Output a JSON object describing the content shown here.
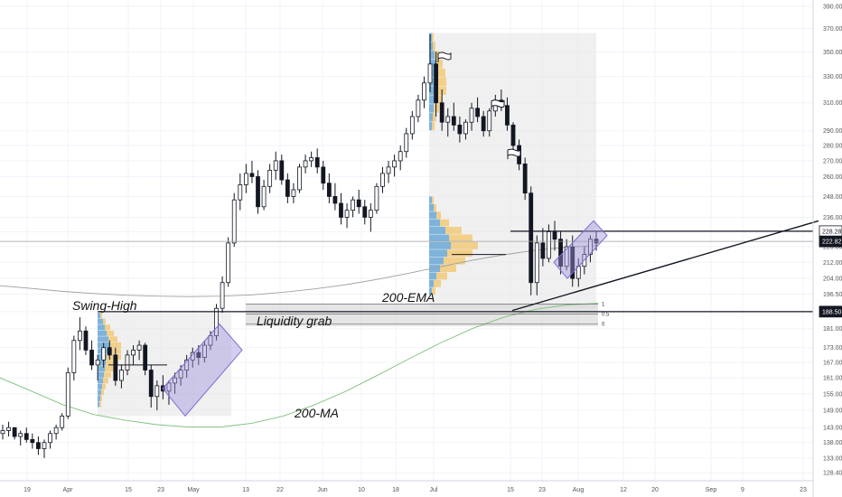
{
  "chart_data": {
    "type": "candlestick",
    "x_labels": [
      "19",
      "Apr",
      "15",
      "23",
      "May",
      "13",
      "22",
      "Jun",
      "10",
      "18",
      "Jul",
      "15",
      "23",
      "Aug",
      "12",
      "20",
      "Sep",
      "9",
      "23"
    ],
    "y_ticks": [
      128.4,
      133.0,
      138.0,
      143.0,
      149.0,
      155.0,
      161.0,
      167.0,
      173.0,
      181.0,
      188.5,
      196.5,
      204.0,
      212.0,
      220.0,
      228.0,
      236.0,
      248.0,
      260.0,
      270.0,
      280.0,
      290.0,
      310.0,
      330.0,
      350.0,
      370.0,
      390.0
    ],
    "y_tick_labels": [
      "128.40",
      "133.00",
      "138.00",
      "143.00",
      "149.00",
      "155.00",
      "161.00",
      "167.00",
      "173.00",
      "181.00",
      "188.50",
      "196.50",
      "204.00",
      "212.00",
      "220.00",
      "228.00",
      "236.00",
      "248.00",
      "260.00",
      "270.00",
      "280.00",
      "290.00",
      "310.00",
      "330.00",
      "350.00",
      "370.00",
      "390.00"
    ],
    "price_tags": [
      {
        "label": "228.28",
        "value": 228.28,
        "color": "#ffffff",
        "text_color": "#131722"
      },
      {
        "label": "222.82",
        "value": 222.82,
        "color": "#131722",
        "text_color": "#ffffff"
      },
      {
        "label": "188.50",
        "value": 188.5,
        "color": "#131722",
        "text_color": "#ffffff"
      }
    ],
    "annotations": {
      "swing_high": "Swing-High",
      "liquidity_grab": "Liquidity grab",
      "ema_label": "200-EMA",
      "ma_label": "200-MA"
    },
    "fib_labels": [
      "1",
      "0.5",
      "0"
    ],
    "series": [
      {
        "name": "price",
        "ohlc": [
          [
            141,
            144,
            139,
            142
          ],
          [
            142,
            145,
            140,
            143
          ],
          [
            143,
            143,
            139,
            140
          ],
          [
            140,
            142,
            137,
            141
          ],
          [
            141,
            143,
            138,
            139
          ],
          [
            139,
            141,
            136,
            138
          ],
          [
            138,
            140,
            134,
            136
          ],
          [
            136,
            139,
            133,
            138
          ],
          [
            138,
            142,
            136,
            141
          ],
          [
            141,
            144,
            139,
            143
          ],
          [
            143,
            148,
            142,
            147
          ],
          [
            147,
            165,
            146,
            163
          ],
          [
            163,
            178,
            160,
            176
          ],
          [
            176,
            186,
            172,
            180
          ],
          [
            180,
            182,
            170,
            172
          ],
          [
            172,
            176,
            164,
            166
          ],
          [
            166,
            170,
            160,
            168
          ],
          [
            168,
            175,
            165,
            173
          ],
          [
            173,
            176,
            168,
            170
          ],
          [
            170,
            173,
            158,
            160
          ],
          [
            160,
            166,
            157,
            164
          ],
          [
            164,
            172,
            162,
            170
          ],
          [
            170,
            174,
            166,
            172
          ],
          [
            172,
            176,
            168,
            174
          ],
          [
            174,
            175,
            162,
            164
          ],
          [
            164,
            166,
            150,
            154
          ],
          [
            154,
            160,
            149,
            158
          ],
          [
            158,
            162,
            153,
            156
          ],
          [
            156,
            160,
            151,
            159
          ],
          [
            159,
            163,
            155,
            161
          ],
          [
            161,
            166,
            158,
            164
          ],
          [
            164,
            170,
            161,
            168
          ],
          [
            168,
            173,
            165,
            171
          ],
          [
            171,
            174,
            166,
            169
          ],
          [
            169,
            176,
            167,
            174
          ],
          [
            174,
            180,
            172,
            178
          ],
          [
            178,
            192,
            176,
            190
          ],
          [
            190,
            205,
            188,
            202
          ],
          [
            202,
            225,
            200,
            222
          ],
          [
            222,
            250,
            220,
            246
          ],
          [
            246,
            262,
            240,
            255
          ],
          [
            255,
            268,
            250,
            262
          ],
          [
            262,
            270,
            256,
            260
          ],
          [
            260,
            264,
            238,
            242
          ],
          [
            242,
            258,
            240,
            254
          ],
          [
            254,
            268,
            250,
            264
          ],
          [
            264,
            276,
            258,
            270
          ],
          [
            270,
            274,
            255,
            258
          ],
          [
            258,
            262,
            244,
            248
          ],
          [
            248,
            256,
            244,
            252
          ],
          [
            252,
            268,
            250,
            266
          ],
          [
            266,
            274,
            262,
            270
          ],
          [
            270,
            276,
            266,
            272
          ],
          [
            272,
            278,
            262,
            266
          ],
          [
            266,
            270,
            252,
            256
          ],
          [
            256,
            262,
            244,
            248
          ],
          [
            248,
            256,
            240,
            244
          ],
          [
            244,
            250,
            232,
            236
          ],
          [
            236,
            244,
            230,
            240
          ],
          [
            240,
            248,
            236,
            246
          ],
          [
            246,
            252,
            238,
            242
          ],
          [
            242,
            246,
            232,
            236
          ],
          [
            236,
            244,
            228,
            240
          ],
          [
            240,
            256,
            238,
            254
          ],
          [
            254,
            266,
            250,
            262
          ],
          [
            262,
            270,
            256,
            266
          ],
          [
            266,
            274,
            260,
            270
          ],
          [
            270,
            280,
            264,
            276
          ],
          [
            276,
            292,
            272,
            288
          ],
          [
            288,
            304,
            284,
            300
          ],
          [
            300,
            316,
            296,
            312
          ],
          [
            312,
            330,
            306,
            325
          ],
          [
            325,
            365,
            318,
            340
          ],
          [
            340,
            350,
            300,
            310
          ],
          [
            310,
            320,
            290,
            296
          ],
          [
            296,
            306,
            286,
            300
          ],
          [
            300,
            310,
            290,
            294
          ],
          [
            294,
            300,
            282,
            288
          ],
          [
            288,
            298,
            284,
            296
          ],
          [
            296,
            310,
            290,
            306
          ],
          [
            306,
            314,
            296,
            300
          ],
          [
            300,
            304,
            286,
            290
          ],
          [
            290,
            306,
            286,
            304
          ],
          [
            304,
            316,
            300,
            312
          ],
          [
            312,
            320,
            304,
            308
          ],
          [
            308,
            314,
            290,
            294
          ],
          [
            294,
            296,
            276,
            280
          ],
          [
            280,
            284,
            264,
            268
          ],
          [
            268,
            272,
            246,
            250
          ],
          [
            250,
            254,
            196,
            202
          ],
          [
            202,
            226,
            196,
            222
          ],
          [
            222,
            230,
            210,
            214
          ],
          [
            214,
            232,
            212,
            228
          ],
          [
            228,
            234,
            218,
            224
          ],
          [
            224,
            228,
            206,
            210
          ],
          [
            210,
            224,
            208,
            220
          ],
          [
            220,
            226,
            200,
            204
          ],
          [
            204,
            214,
            200,
            210
          ],
          [
            210,
            220,
            206,
            216
          ],
          [
            216,
            226,
            212,
            224
          ],
          [
            224,
            228,
            218,
            222
          ]
        ]
      },
      {
        "name": "200-EMA",
        "values": [
          200.5,
          199.2,
          197.8,
          196.8,
          196.0,
          195.6,
          195.4,
          195.6,
          196.2,
          197.4,
          199.0,
          201.0,
          203.6,
          206.6,
          209.8,
          213.0,
          215.8,
          218.2,
          219.8,
          220.6
        ]
      },
      {
        "name": "200-MA",
        "values": [
          161.0,
          156.0,
          151.0,
          147.5,
          145.5,
          144.0,
          143.2,
          143.2,
          144.5,
          147.0,
          151.0,
          156.0,
          162.0,
          168.5,
          175.0,
          181.0,
          186.0,
          189.5,
          191.5,
          192.3
        ]
      }
    ],
    "y_range": [
      126.0,
      396.0
    ],
    "scale": "log",
    "colors": {
      "bull": "#ffffff",
      "bear": "#131722",
      "ema": "#9e9e9e",
      "ma": "#7fbf7f",
      "profile_blue": "#6aa8d6",
      "profile_yellow": "#f2c978",
      "channel": "#a093dc"
    }
  }
}
